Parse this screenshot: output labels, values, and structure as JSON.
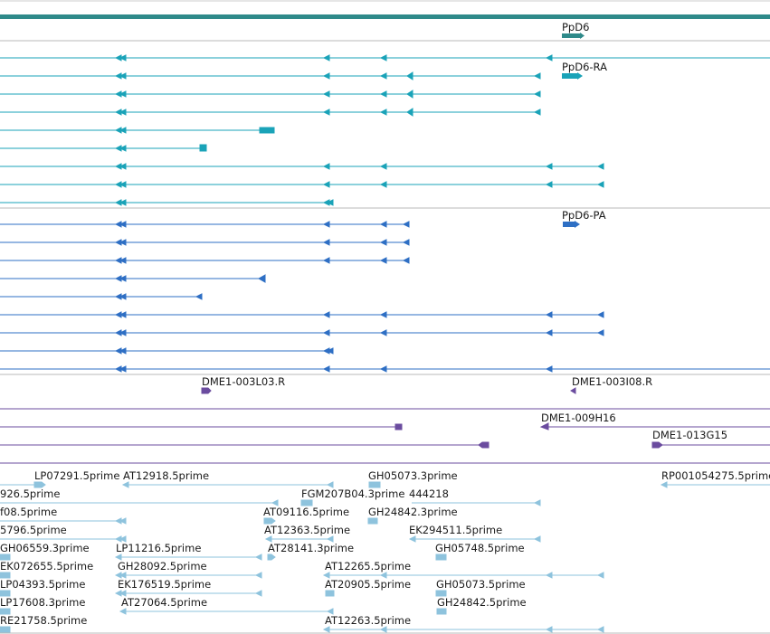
{
  "colors": {
    "gene": "#2f8a8a",
    "mrna": "#1aa3b8",
    "protein": "#2e6fc4",
    "clone": "#6b4c9f",
    "est": "#8ec3dd",
    "divider": "#b8b8b8"
  },
  "gene": {
    "label": "PpD6"
  },
  "transcripts": {
    "ra_label": "PpD6-RA",
    "pa_label": "PpD6-PA"
  },
  "clones": [
    {
      "label": "DME1-003L03.R"
    },
    {
      "label": "DME1-003I08.R"
    },
    {
      "label": "DME1-009H16"
    },
    {
      "label": "DME1-013G15"
    }
  ],
  "ests": [
    {
      "label": "LP07291.5prime"
    },
    {
      "label": "AT12918.5prime"
    },
    {
      "label": "GH05073.3prime"
    },
    {
      "label": "RP001054275.5prime"
    },
    {
      "label": "926.5prime"
    },
    {
      "label": "FGM207B04.3prime"
    },
    {
      "label": "444218"
    },
    {
      "label": "f08.5prime"
    },
    {
      "label": "AT09116.5prime"
    },
    {
      "label": "GH24842.3prime"
    },
    {
      "label": "5796.5prime"
    },
    {
      "label": "AT12363.5prime"
    },
    {
      "label": "EK294511.5prime"
    },
    {
      "label": "GH06559.3prime"
    },
    {
      "label": "LP11216.5prime"
    },
    {
      "label": "AT28141.3prime"
    },
    {
      "label": "GH05748.5prime"
    },
    {
      "label": "EK072655.5prime"
    },
    {
      "label": "GH28092.5prime"
    },
    {
      "label": "AT12265.5prime"
    },
    {
      "label": "LP04393.5prime"
    },
    {
      "label": "EK176519.5prime"
    },
    {
      "label": "AT20905.5prime"
    },
    {
      "label": "GH05073.5prime"
    },
    {
      "label": "LP17608.3prime"
    },
    {
      "label": "AT27064.5prime"
    },
    {
      "label": "GH24842.5prime"
    },
    {
      "label": "RE21758.5prime"
    },
    {
      "label": "AT12263.5prime"
    }
  ]
}
